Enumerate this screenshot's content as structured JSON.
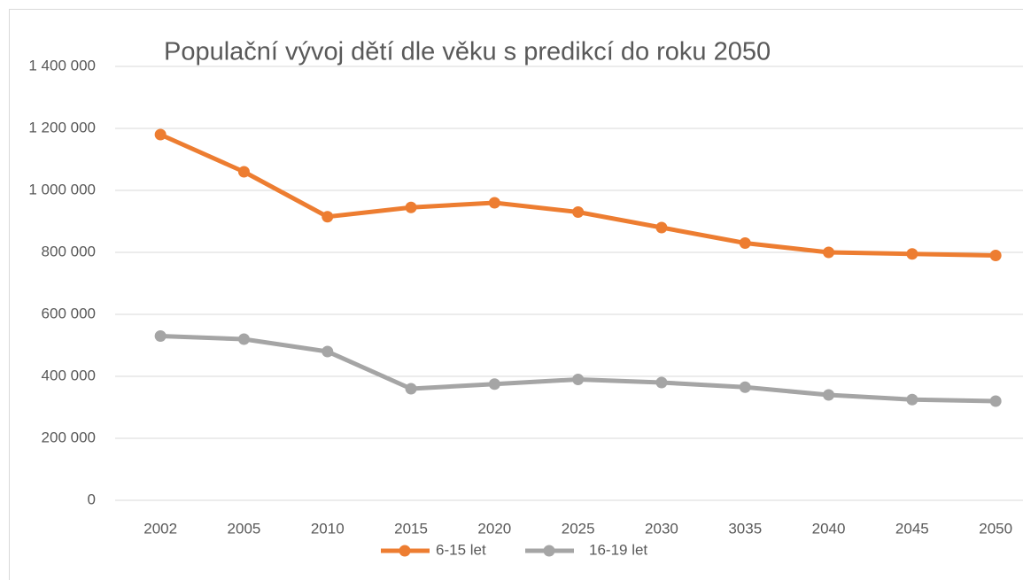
{
  "chart_data": {
    "type": "line",
    "title": "Populační vývoj  dětí dle věku s predikcí do roku 2050",
    "categories": [
      "2002",
      "2005",
      "2010",
      "2015",
      "2020",
      "2025",
      "2030",
      "3035",
      "2040",
      "2045",
      "2050"
    ],
    "series": [
      {
        "name": "6-15 let",
        "color": "#ed7d31",
        "values": [
          1180000,
          1060000,
          915000,
          945000,
          960000,
          930000,
          880000,
          830000,
          800000,
          795000,
          790000
        ]
      },
      {
        "name": "16-19 let",
        "color": "#a5a5a5",
        "values": [
          530000,
          520000,
          480000,
          360000,
          375000,
          390000,
          380000,
          365000,
          340000,
          325000,
          320000
        ]
      }
    ],
    "ylim": [
      0,
      1400000
    ],
    "yticks": [
      0,
      {
        "value": 200000,
        "label": "200 000"
      },
      {
        "value": 400000,
        "label": "400 000"
      },
      {
        "value": 600000,
        "label": "600 000"
      },
      {
        "value": 800000,
        "label": "800 000"
      },
      {
        "value": 1000000,
        "label": "1 000 000"
      },
      {
        "value": 1200000,
        "label": "1 200 000"
      },
      {
        "value": 1400000,
        "label": "1 400 000"
      }
    ],
    "grid": true,
    "legend": "bottom"
  }
}
